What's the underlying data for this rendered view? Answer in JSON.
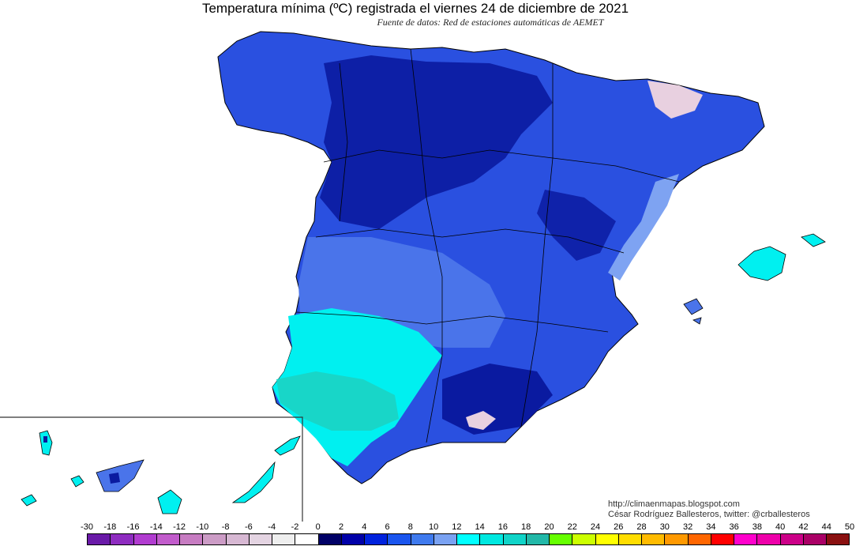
{
  "title": "Temperatura mínima (ºC) registrada el viernes 24 de diciembre de 2021",
  "subtitle": "Fuente de datos: Red de estaciones automáticas de AEMET",
  "credit": {
    "url": "http://climaenmapas.blogspot.com",
    "author": "César Rodríguez Ballesteros, twitter: @crballesteros"
  },
  "legend": {
    "labels": [
      "-30",
      "-18",
      "-16",
      "-14",
      "-12",
      "-10",
      "-8",
      "-6",
      "-4",
      "-2",
      "0",
      "2",
      "4",
      "6",
      "8",
      "10",
      "12",
      "14",
      "16",
      "18",
      "20",
      "22",
      "24",
      "26",
      "28",
      "30",
      "32",
      "34",
      "36",
      "38",
      "40",
      "42",
      "44",
      "50"
    ],
    "colors": [
      "#6a1aa8",
      "#8e2cc0",
      "#b13cd0",
      "#c25ccc",
      "#c77cc2",
      "#cc9cc6",
      "#d7b8d3",
      "#e4d4e2",
      "#eeeeee",
      "#ffffff",
      "#000066",
      "#0000a8",
      "#0022dd",
      "#1a55ee",
      "#3f7aee",
      "#7aa2f2",
      "#00ffff",
      "#00e8e0",
      "#10d4c8",
      "#22b8a8",
      "#66ff00",
      "#ccff00",
      "#ffff00",
      "#ffdd00",
      "#ffbb00",
      "#ff9900",
      "#ff6600",
      "#ff0000",
      "#ff00cc",
      "#ee00aa",
      "#cc0088",
      "#aa0066",
      "#8a1010"
    ]
  },
  "map_colors": {
    "land_dark": "#0a1aa0",
    "land_blue": "#2a50e0",
    "land_mid": "#4a74ea",
    "land_light": "#7ea3f2",
    "land_cyan": "#00f0f0",
    "land_teal": "#18d6c8",
    "land_pink": "#e8d0e0",
    "inset_frame": "#333333"
  }
}
